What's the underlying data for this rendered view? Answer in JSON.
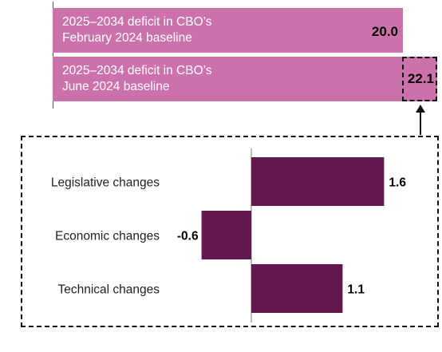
{
  "colors": {
    "top_bar": "#cc71ac",
    "change_bar": "#63174f",
    "text_white": "#ffffff",
    "text_dark": "#000000"
  },
  "top_bars": [
    {
      "label": "2025–2034 deficit in CBO’s\nFebruary 2024 baseline",
      "value": "20.0"
    },
    {
      "label": "2025–2034 deficit in CBO’s\nJune 2024 baseline",
      "value": "22.1"
    }
  ],
  "chart_data": {
    "type": "bar",
    "orientation": "horizontal",
    "categories": [
      "Legislative changes",
      "Economic changes",
      "Technical changes"
    ],
    "values": [
      1.6,
      -0.6,
      1.1
    ],
    "value_labels": [
      "1.6",
      "-0.6",
      "1.1"
    ],
    "totals": {
      "february_2024_baseline": 20.0,
      "june_2024_baseline": 22.1
    },
    "xlim": [
      -0.6,
      1.6
    ],
    "grid": false
  }
}
